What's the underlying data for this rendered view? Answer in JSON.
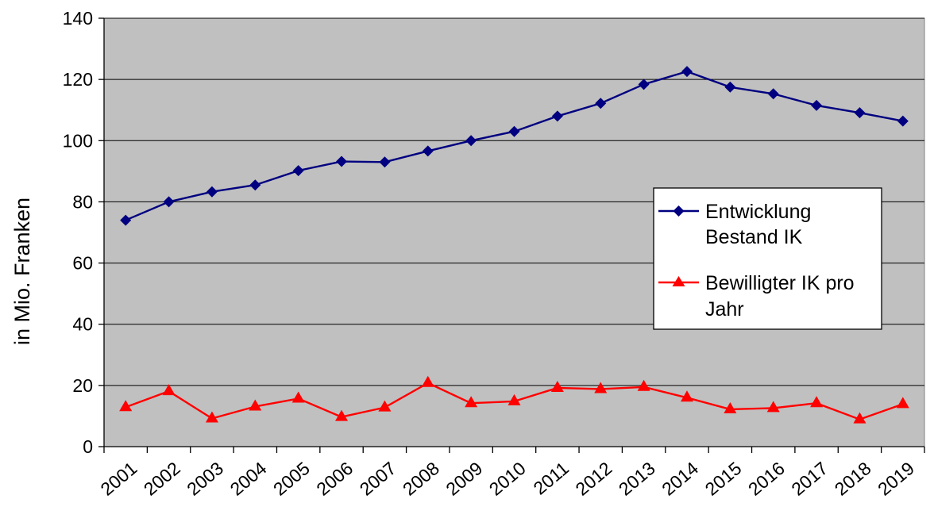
{
  "chart_data": {
    "type": "line",
    "ylabel": "in Mio. Franken",
    "xlabel": "",
    "ylim": [
      0,
      140
    ],
    "yticks": [
      0,
      20,
      40,
      60,
      80,
      100,
      120,
      140
    ],
    "categories": [
      "2001",
      "2002",
      "2003",
      "2004",
      "2005",
      "2006",
      "2007",
      "2008",
      "2009",
      "2010",
      "2011",
      "2012",
      "2013",
      "2014",
      "2015",
      "2016",
      "2017",
      "2018",
      "2019"
    ],
    "grid": true,
    "legend_position": "right",
    "plot_background": "#c0c0c0",
    "series": [
      {
        "legend_lines": [
          "Entwicklung",
          "Bestand IK"
        ],
        "color": "#000080",
        "marker": "diamond",
        "values": [
          74,
          80,
          83.3,
          85.5,
          90.2,
          93.2,
          93,
          96.6,
          100,
          103,
          108,
          112.2,
          118.4,
          122.6,
          117.5,
          115.3,
          111.5,
          109.1,
          106.4
        ]
      },
      {
        "legend_lines": [
          "Bewilligter IK pro",
          "Jahr"
        ],
        "color": "#ff0000",
        "marker": "triangle",
        "values": [
          12.9,
          18.1,
          9.2,
          13.1,
          15.7,
          9.7,
          12.8,
          20.8,
          14.2,
          14.8,
          19.2,
          18.8,
          19.5,
          16,
          12.2,
          12.6,
          14.2,
          8.9,
          13.9
        ]
      }
    ]
  }
}
